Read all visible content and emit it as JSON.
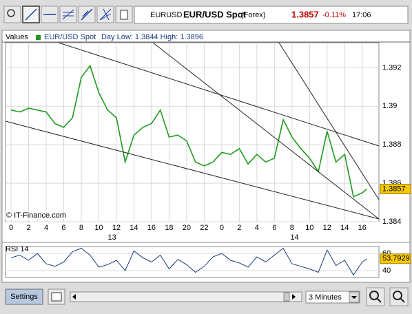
{
  "header": {
    "symbol": "EURUSD",
    "name": "EUR/USD Spot",
    "market": "(Forex)",
    "price": "1.3857",
    "change": "-0.11%",
    "time": "17:06"
  },
  "controls": {
    "settings": "Settings",
    "interval": "3 Minutes"
  },
  "chart_data": [
    {
      "type": "line",
      "legend_title": "Values",
      "subtitle": "Day Low: 1.3844 High: 1.3896",
      "annotation": "© IT-Finance.com",
      "x": [
        0,
        1,
        2,
        3,
        4,
        5,
        6,
        7,
        8,
        9,
        10,
        11,
        12,
        13,
        14,
        15,
        16,
        17,
        18,
        19,
        20,
        21,
        22,
        23,
        24,
        25,
        26,
        27,
        28,
        29,
        30,
        31,
        32,
        33,
        34,
        35,
        36,
        37,
        38,
        39,
        40,
        40.5
      ],
      "series": [
        {
          "name": "EUR/USD Spot",
          "color": "#1e9a1e",
          "values": [
            1.3898,
            1.3897,
            1.3899,
            1.3898,
            1.3897,
            1.3891,
            1.3889,
            1.3894,
            1.3915,
            1.3921,
            1.3907,
            1.3898,
            1.3894,
            1.3871,
            1.3885,
            1.3889,
            1.3891,
            1.3898,
            1.3884,
            1.3885,
            1.3882,
            1.3871,
            1.3869,
            1.3871,
            1.3876,
            1.3875,
            1.3878,
            1.387,
            1.3875,
            1.3871,
            1.3873,
            1.3893,
            1.3884,
            1.3878,
            1.3873,
            1.3866,
            1.3887,
            1.3871,
            1.3875,
            1.3853,
            1.3855,
            1.3857
          ]
        }
      ],
      "xlim": [
        -0.63,
        41.9
      ],
      "xticks": [
        0,
        2,
        4,
        6,
        8,
        10,
        12,
        14,
        16,
        18,
        20,
        22,
        {
          "value": 24,
          "label": "0"
        },
        {
          "value": 26,
          "label": "2"
        },
        {
          "value": 28,
          "label": "4"
        },
        {
          "value": 30,
          "label": "6"
        },
        {
          "value": 32,
          "label": "8"
        },
        {
          "value": 34,
          "label": "10"
        },
        {
          "value": 36,
          "label": "12"
        },
        {
          "value": 38,
          "label": "14"
        },
        {
          "value": 40,
          "label": "16"
        }
      ],
      "day_labels": [
        {
          "value": 11.5,
          "label": "13"
        },
        {
          "value": 32.3,
          "label": "14"
        }
      ],
      "ylim": [
        1.384,
        1.3933
      ],
      "yticks": [
        1.384,
        1.386,
        1.388,
        1.39,
        1.392
      ],
      "grid": true
    },
    {
      "type": "line",
      "title": "RSI 14",
      "x": [
        0,
        1,
        2,
        3,
        4,
        5,
        6,
        7,
        8,
        9,
        10,
        11,
        12,
        13,
        14,
        15,
        16,
        17,
        18,
        19,
        20,
        21,
        22,
        23,
        24,
        25,
        26,
        27,
        28,
        29,
        30,
        31,
        32,
        33,
        34,
        35,
        36,
        37,
        38,
        39,
        40,
        40.5
      ],
      "series": [
        {
          "name": "RSI 14",
          "color": "#1a3a7a",
          "values": [
            55,
            58,
            52,
            60,
            48,
            45,
            50,
            62,
            66,
            58,
            44,
            47,
            52,
            40,
            63,
            55,
            50,
            58,
            42,
            53,
            47,
            38,
            45,
            56,
            60,
            52,
            49,
            44,
            56,
            50,
            58,
            66,
            48,
            45,
            42,
            38,
            64,
            46,
            52,
            35,
            50,
            53.7929
          ]
        }
      ],
      "xlim": [
        -0.63,
        41.9
      ],
      "ylim": [
        32,
        68
      ],
      "yticks": [
        40,
        60
      ],
      "grid": true
    }
  ]
}
